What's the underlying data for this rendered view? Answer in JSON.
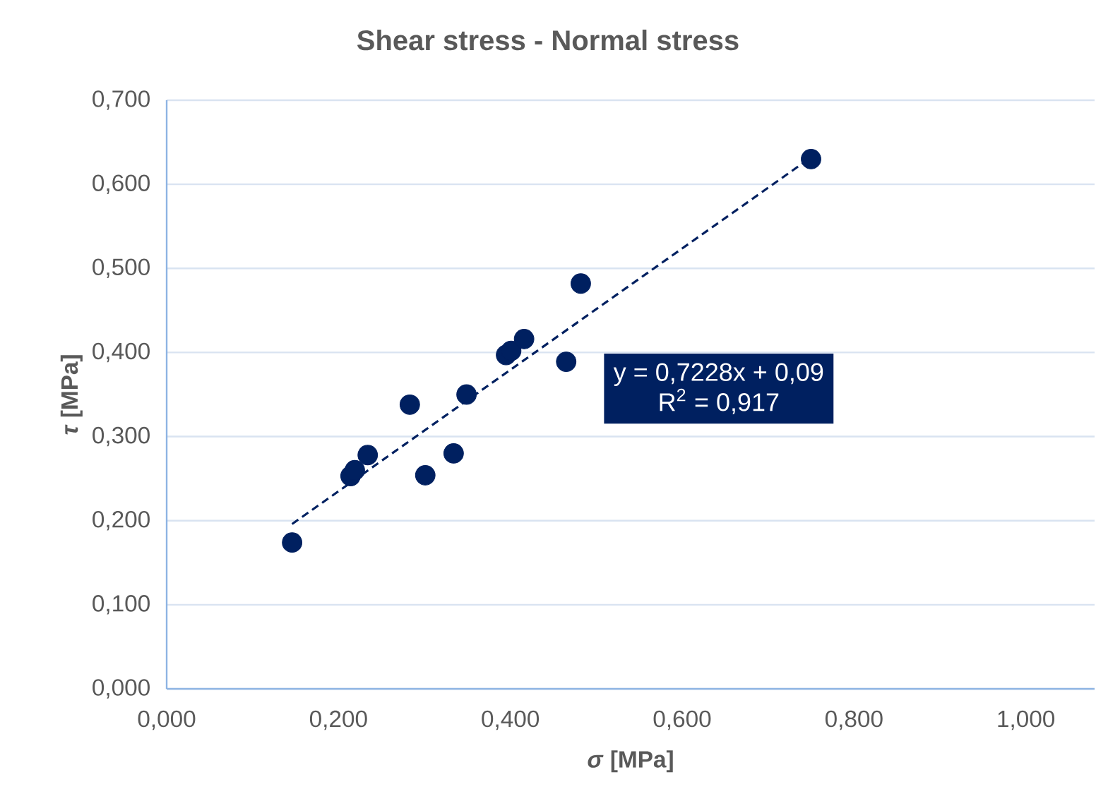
{
  "chart_data": {
    "type": "scatter",
    "title": "Shear stress - Normal stress",
    "xlabel": "*σ*  [MPa]",
    "ylabel": "*τ* [MPa]",
    "xlim": [
      0,
      1.08
    ],
    "ylim": [
      0,
      0.7
    ],
    "xticks": [
      {
        "value": 0,
        "label": "0,000"
      },
      {
        "value": 0.2,
        "label": "0,200"
      },
      {
        "value": 0.4,
        "label": "0,400"
      },
      {
        "value": 0.6,
        "label": "0,600"
      },
      {
        "value": 0.8,
        "label": "0,800"
      },
      {
        "value": 1.0,
        "label": "1,000"
      }
    ],
    "yticks": [
      {
        "value": 0,
        "label": "0,000"
      },
      {
        "value": 0.1,
        "label": "0,100"
      },
      {
        "value": 0.2,
        "label": "0,200"
      },
      {
        "value": 0.3,
        "label": "0,300"
      },
      {
        "value": 0.4,
        "label": "0,400"
      },
      {
        "value": 0.5,
        "label": "0,500"
      },
      {
        "value": 0.6,
        "label": "0,600"
      },
      {
        "value": 0.7,
        "label": "0,700"
      }
    ],
    "grid": "y",
    "series": [
      {
        "color": "#002060",
        "marker": "circle",
        "x": [
          0.146,
          0.214,
          0.219,
          0.234,
          0.283,
          0.301,
          0.334,
          0.349,
          0.395,
          0.401,
          0.416,
          0.465,
          0.482,
          0.75
        ],
        "values": [
          0.174,
          0.253,
          0.26,
          0.278,
          0.338,
          0.254,
          0.28,
          0.35,
          0.397,
          0.402,
          0.416,
          0.389,
          0.482,
          0.63
        ]
      },
      {
        "type": "line",
        "color": "#002060",
        "line_style": "dashed",
        "x": [
          0.146,
          0.75
        ],
        "values": [
          0.196,
          0.632
        ]
      }
    ],
    "annotations": [
      "y = 0,7228x + 0,09",
      "R$^{2}$ = 0,917"
    ]
  }
}
